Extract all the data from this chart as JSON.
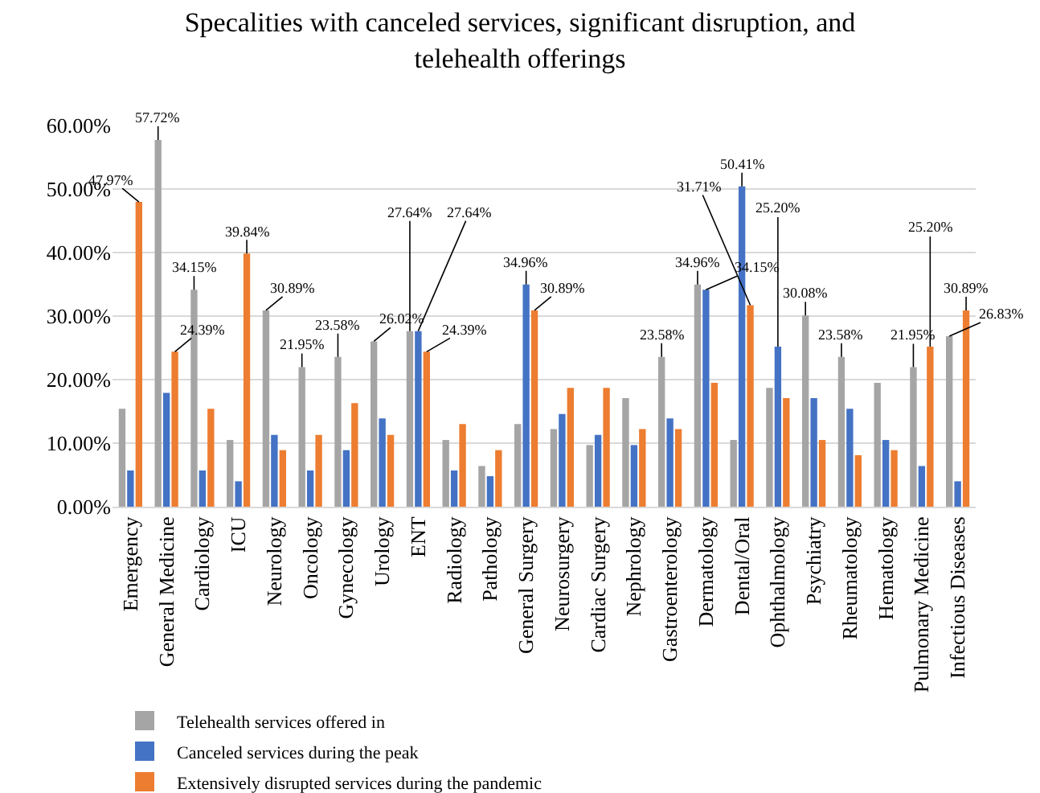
{
  "chart_data": {
    "type": "bar",
    "title": "Specalities with canceled services, significant disruption, and telehealth offerings",
    "categories": [
      "Emergency",
      "General Medicine",
      "Cardiology",
      "ICU",
      "Neurology",
      "Oncology",
      "Gynecology",
      "Urology",
      "ENT",
      "Radiology",
      "Pathology",
      "General Surgery",
      "Neurosurgery",
      "Cardiac Surgery",
      "Nephrology",
      "Gastroenterology",
      "Dermatology",
      "Dental/Oral",
      "Ophthalmology",
      "Psychiatry",
      "Rheumatology",
      "Hematology",
      "Pulmonary Medicine",
      "Infectious Diseases"
    ],
    "series": [
      {
        "name": "Telehealth services offered in",
        "color": "#a5a5a5",
        "values": [
          15.4,
          57.72,
          34.15,
          10.5,
          30.89,
          21.95,
          23.58,
          26.02,
          27.64,
          10.5,
          6.4,
          13.0,
          12.2,
          9.7,
          17.1,
          23.58,
          34.96,
          10.5,
          18.7,
          30.08,
          23.58,
          19.5,
          21.95,
          26.83
        ],
        "value_labels": [
          null,
          "57.72%",
          "34.15%",
          null,
          "30.89%",
          "21.95%",
          "23.58%",
          "26.02%",
          "27.64%",
          null,
          null,
          null,
          null,
          null,
          null,
          "23.58%",
          "34.96%",
          null,
          null,
          "30.08%",
          "23.58%",
          null,
          "21.95%",
          "26.83%"
        ]
      },
      {
        "name": "Canceled services during the peak",
        "color": "#4472c4",
        "values": [
          5.7,
          17.9,
          5.7,
          4.0,
          11.3,
          5.7,
          8.9,
          13.9,
          27.64,
          5.7,
          4.8,
          34.96,
          14.6,
          11.3,
          9.7,
          13.9,
          34.15,
          50.41,
          25.2,
          17.1,
          15.4,
          10.5,
          6.4,
          4.0
        ],
        "value_labels": [
          null,
          null,
          null,
          null,
          null,
          null,
          null,
          null,
          "27.64%",
          null,
          null,
          "34.96%",
          null,
          null,
          null,
          null,
          "34.15%",
          "50.41%",
          "25.20%",
          null,
          null,
          null,
          null,
          null
        ]
      },
      {
        "name": "Extensively disrupted services during the pandemic",
        "color": "#ed7d31",
        "values": [
          47.97,
          24.39,
          15.4,
          39.84,
          8.9,
          11.3,
          16.3,
          11.3,
          24.39,
          13.0,
          8.9,
          30.89,
          18.7,
          18.7,
          12.2,
          12.2,
          19.5,
          31.71,
          17.1,
          10.5,
          8.1,
          8.9,
          25.2,
          30.89
        ],
        "value_labels": [
          "47.97%",
          "24.39%",
          null,
          "39.84%",
          null,
          null,
          null,
          null,
          "24.39%",
          null,
          null,
          "30.89%",
          null,
          null,
          null,
          null,
          null,
          "31.71%",
          null,
          null,
          null,
          null,
          "25.20%",
          "30.89%"
        ]
      }
    ],
    "ylim": [
      0,
      60
    ],
    "yticks": [
      {
        "value": 0,
        "label": "0.00%"
      },
      {
        "value": 10,
        "label": "10.00%"
      },
      {
        "value": 20,
        "label": "20.00%"
      },
      {
        "value": 30,
        "label": "30.00%"
      },
      {
        "value": 40,
        "label": "40.00%"
      },
      {
        "value": 50,
        "label": "50.00%"
      },
      {
        "value": 60,
        "label": "60.00%"
      }
    ],
    "grid": "y",
    "legend": "bottom"
  }
}
